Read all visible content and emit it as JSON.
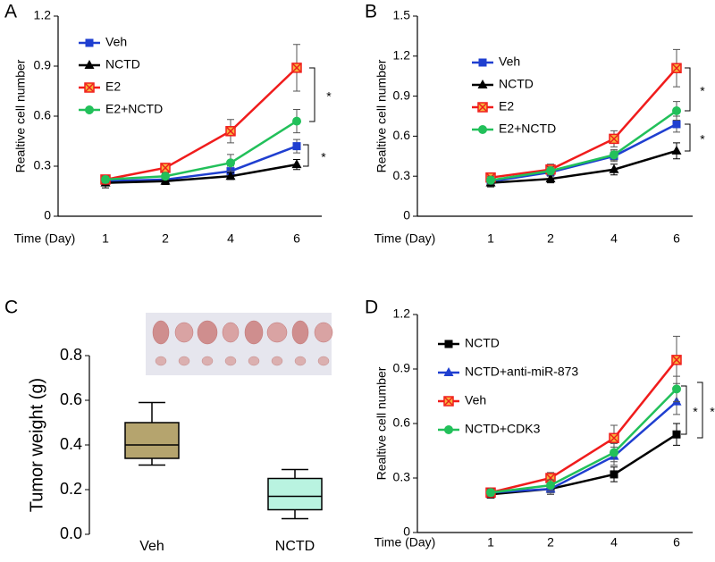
{
  "chart_data": [
    {
      "type": "line",
      "title": "A",
      "xlabel": "Time (Day)",
      "ylabel": "Realtive cell number",
      "categories": [
        "1",
        "2",
        "4",
        "6"
      ],
      "ylim": [
        0,
        1.2
      ],
      "yticks": [
        0,
        0.3,
        0.6,
        0.9,
        1.2
      ],
      "series": [
        {
          "name": "Veh",
          "color": "#1f3fd0",
          "marker": "square",
          "values": [
            0.21,
            0.22,
            0.27,
            0.42
          ],
          "errors": [
            0.02,
            0.02,
            0.03,
            0.04
          ]
        },
        {
          "name": "NCTD",
          "color": "#000000",
          "marker": "triangle",
          "values": [
            0.2,
            0.21,
            0.24,
            0.31
          ],
          "errors": [
            0.03,
            0.02,
            0.02,
            0.03
          ]
        },
        {
          "name": "E2",
          "color": "#f01c1c",
          "marker": "xsquare",
          "values": [
            0.22,
            0.29,
            0.51,
            0.89
          ],
          "errors": [
            0.02,
            0.02,
            0.07,
            0.14
          ]
        },
        {
          "name": "E2+NCTD",
          "color": "#22c05a",
          "marker": "circle",
          "values": [
            0.22,
            0.24,
            0.32,
            0.57
          ],
          "errors": [
            0.02,
            0.02,
            0.05,
            0.07
          ]
        }
      ],
      "annotations": [
        "*",
        "*"
      ]
    },
    {
      "type": "line",
      "title": "B",
      "xlabel": "Time (Day)",
      "ylabel": "Realtive cell number",
      "categories": [
        "1",
        "2",
        "4",
        "6"
      ],
      "ylim": [
        0,
        1.5
      ],
      "yticks": [
        0,
        0.3,
        0.6,
        0.9,
        1.2,
        1.5
      ],
      "series": [
        {
          "name": "Veh",
          "color": "#1f3fd0",
          "marker": "square",
          "values": [
            0.26,
            0.33,
            0.45,
            0.69
          ],
          "errors": [
            0.03,
            0.03,
            0.04,
            0.06
          ]
        },
        {
          "name": "NCTD",
          "color": "#000000",
          "marker": "triangle",
          "values": [
            0.25,
            0.28,
            0.35,
            0.49
          ],
          "errors": [
            0.03,
            0.03,
            0.04,
            0.06
          ]
        },
        {
          "name": "E2",
          "color": "#f01c1c",
          "marker": "xsquare",
          "values": [
            0.29,
            0.35,
            0.58,
            1.11
          ],
          "errors": [
            0.03,
            0.04,
            0.06,
            0.14
          ]
        },
        {
          "name": "E2+NCTD",
          "color": "#22c05a",
          "marker": "circle",
          "values": [
            0.27,
            0.34,
            0.46,
            0.79
          ],
          "errors": [
            0.03,
            0.03,
            0.04,
            0.07
          ]
        }
      ],
      "annotations": [
        "*",
        "*"
      ]
    },
    {
      "type": "box",
      "title": "C",
      "ylabel": "Tumor weight (g)",
      "categories": [
        "Veh",
        "NCTD"
      ],
      "ylim": [
        0,
        0.8
      ],
      "yticks": [
        {
          "value": 0,
          "label": "0.0"
        },
        {
          "value": 0.2,
          "label": "0.2"
        },
        {
          "value": 0.4,
          "label": "0.4"
        },
        {
          "value": 0.6,
          "label": "0.6"
        },
        {
          "value": 0.8,
          "label": "0.8"
        }
      ],
      "colors": [
        "#b5a46e",
        "#b9f3e0"
      ],
      "boxes": [
        {
          "min": 0.31,
          "q1": 0.34,
          "median": 0.4,
          "q3": 0.5,
          "max": 0.59
        },
        {
          "min": 0.07,
          "q1": 0.11,
          "median": 0.17,
          "q3": 0.25,
          "max": 0.29
        }
      ]
    },
    {
      "type": "line",
      "title": "D",
      "xlabel": "Time (Day)",
      "ylabel": "Realtive cell number",
      "categories": [
        "1",
        "2",
        "4",
        "6"
      ],
      "ylim": [
        0,
        1.2
      ],
      "yticks": [
        0,
        0.3,
        0.6,
        0.9,
        1.2
      ],
      "series": [
        {
          "name": "NCTD",
          "color": "#000000",
          "marker": "square",
          "values": [
            0.21,
            0.24,
            0.32,
            0.54
          ],
          "errors": [
            0.02,
            0.03,
            0.04,
            0.06
          ]
        },
        {
          "name": "NCTD+anti-miR-873",
          "color": "#1f3fd0",
          "marker": "triangle",
          "values": [
            0.22,
            0.24,
            0.42,
            0.72
          ],
          "errors": [
            0.02,
            0.03,
            0.05,
            0.07
          ]
        },
        {
          "name": "Veh",
          "color": "#f01c1c",
          "marker": "xsquare",
          "values": [
            0.22,
            0.3,
            0.52,
            0.95
          ],
          "errors": [
            0.02,
            0.03,
            0.07,
            0.13
          ]
        },
        {
          "name": "NCTD+CDK3",
          "color": "#22c05a",
          "marker": "circle",
          "values": [
            0.22,
            0.26,
            0.44,
            0.79
          ],
          "errors": [
            0.02,
            0.03,
            0.05,
            0.07
          ]
        }
      ],
      "annotations": [
        "*",
        "*"
      ]
    }
  ]
}
